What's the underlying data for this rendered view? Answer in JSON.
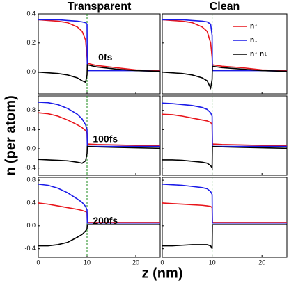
{
  "axis_labels": {
    "x": "z (nm)",
    "y": "n (per atom)"
  },
  "chart_data": [
    {
      "type": "line",
      "title": "Transparent",
      "annotation": "0fs",
      "x": [
        0,
        2,
        4,
        6,
        8,
        9,
        9.7,
        10,
        10.05,
        12,
        16,
        20,
        25
      ],
      "xlim": [
        0,
        25
      ],
      "xticks": [
        0,
        10,
        20
      ],
      "ylim": [
        -0.15,
        0.4
      ],
      "yticks": [
        {
          "value": 0,
          "label": "0.0"
        },
        0.2,
        0.4
      ],
      "vline": 10,
      "series": [
        {
          "name": "n↑",
          "color": "#e8141a",
          "values": [
            0.36,
            0.355,
            0.35,
            0.34,
            0.31,
            0.28,
            0.22,
            0.1,
            0.06,
            0.045,
            0.03,
            0.015,
            0.01
          ]
        },
        {
          "name": "n↓",
          "color": "#1a1ae8",
          "values": [
            0.36,
            0.36,
            0.36,
            0.355,
            0.35,
            0.345,
            0.34,
            0.33,
            0.01,
            0.01,
            0.01,
            0.01,
            0.005
          ]
        },
        {
          "name": "n↑ n↓",
          "color": "#000000",
          "values": [
            0,
            -0.005,
            -0.01,
            -0.02,
            -0.04,
            -0.06,
            -0.07,
            -0.02,
            0.05,
            0.035,
            0.02,
            0.01,
            0.005
          ]
        }
      ]
    },
    {
      "type": "line",
      "title": "Clean",
      "legend": "upper right",
      "x": [
        0,
        2,
        4,
        6,
        8,
        9,
        9.7,
        10,
        10.05,
        12,
        16,
        20,
        25
      ],
      "xlim": [
        0,
        25
      ],
      "xticks": [
        0,
        10,
        20
      ],
      "ylim": [
        -0.15,
        0.4
      ],
      "yticks": [
        {
          "value": 0,
          "label": "0.0"
        },
        0.2,
        0.4
      ],
      "vline": 10,
      "series": [
        {
          "name": "n↑",
          "color": "#e8141a",
          "values": [
            0.36,
            0.355,
            0.35,
            0.34,
            0.31,
            0.28,
            0.2,
            0.1,
            0.05,
            0.04,
            0.03,
            0.015,
            0.01
          ]
        },
        {
          "name": "n↓",
          "color": "#1a1ae8",
          "values": [
            0.36,
            0.36,
            0.36,
            0.355,
            0.35,
            0.345,
            0.33,
            0.25,
            0.01,
            0.01,
            0.01,
            0.01,
            0.005
          ]
        },
        {
          "name": "n↑ n↓",
          "color": "#000000",
          "values": [
            0,
            -0.005,
            -0.01,
            -0.02,
            -0.04,
            -0.06,
            -0.11,
            -0.05,
            0.04,
            0.03,
            0.02,
            0.01,
            0.005
          ]
        }
      ]
    },
    {
      "type": "line",
      "annotation": "100fs",
      "x": [
        0,
        2,
        4,
        6,
        8,
        9,
        9.7,
        10,
        10.05,
        12,
        16,
        20,
        25
      ],
      "xlim": [
        0,
        25
      ],
      "xticks": [
        0,
        10,
        20
      ],
      "ylim": [
        -0.55,
        1.1
      ],
      "yticks": [
        -0.4,
        {
          "value": 0,
          "label": "0.0"
        },
        0.4,
        0.8
      ],
      "vline": 10,
      "series": [
        {
          "name": "n↑",
          "color": "#e8141a",
          "values": [
            0.75,
            0.73,
            0.68,
            0.6,
            0.5,
            0.44,
            0.38,
            0.33,
            0.1,
            0.09,
            0.08,
            0.07,
            0.06
          ]
        },
        {
          "name": "n↓",
          "color": "#1a1ae8",
          "values": [
            0.97,
            0.96,
            0.92,
            0.84,
            0.72,
            0.62,
            0.5,
            0.4,
            0.05,
            0.05,
            0.05,
            0.05,
            0.05
          ]
        },
        {
          "name": "n↑ n↓",
          "color": "#000000",
          "values": [
            -0.22,
            -0.23,
            -0.24,
            -0.25,
            -0.28,
            -0.3,
            -0.25,
            -0.1,
            0.05,
            0.04,
            0.03,
            0.02,
            0.01
          ]
        }
      ]
    },
    {
      "type": "line",
      "x": [
        0,
        2,
        4,
        6,
        8,
        9,
        9.7,
        10,
        10.05,
        12,
        16,
        20,
        25
      ],
      "xlim": [
        0,
        25
      ],
      "xticks": [
        0,
        10,
        20
      ],
      "ylim": [
        -0.55,
        1.1
      ],
      "yticks": [
        -0.4,
        {
          "value": 0,
          "label": "0.0"
        },
        0.4,
        0.8
      ],
      "vline": 10,
      "series": [
        {
          "name": "n↑",
          "color": "#e8141a",
          "values": [
            0.72,
            0.71,
            0.68,
            0.64,
            0.6,
            0.58,
            0.55,
            0.5,
            0.1,
            0.09,
            0.08,
            0.07,
            0.06
          ]
        },
        {
          "name": "n↓",
          "color": "#1a1ae8",
          "values": [
            0.95,
            0.94,
            0.92,
            0.9,
            0.86,
            0.82,
            0.75,
            0.68,
            0.05,
            0.05,
            0.05,
            0.05,
            0.05
          ]
        },
        {
          "name": "n↑ n↓",
          "color": "#000000",
          "values": [
            -0.23,
            -0.23,
            -0.24,
            -0.26,
            -0.28,
            -0.3,
            -0.35,
            -0.4,
            0.05,
            0.04,
            0.03,
            0.02,
            0.01
          ]
        }
      ]
    },
    {
      "type": "line",
      "annotation": "200fs",
      "x": [
        0,
        2,
        4,
        6,
        8,
        9,
        9.7,
        10,
        10.05,
        12,
        16,
        20,
        25
      ],
      "xlim": [
        0,
        25
      ],
      "xticks": [
        0,
        10,
        20
      ],
      "ylim": [
        -0.55,
        0.85
      ],
      "yticks": [
        -0.4,
        {
          "value": 0,
          "label": "0.0"
        },
        0.4,
        0.8
      ],
      "vline": 10,
      "series": [
        {
          "name": "n↑",
          "color": "#e8141a",
          "values": [
            0.4,
            0.38,
            0.35,
            0.32,
            0.29,
            0.27,
            0.25,
            0.23,
            0.06,
            0.06,
            0.06,
            0.06,
            0.06
          ]
        },
        {
          "name": "n↓",
          "color": "#1a1ae8",
          "values": [
            0.73,
            0.71,
            0.66,
            0.58,
            0.47,
            0.41,
            0.34,
            0.28,
            0.05,
            0.05,
            0.05,
            0.05,
            0.05
          ]
        },
        {
          "name": "n↑ n↓",
          "color": "#000000",
          "values": [
            -0.35,
            -0.35,
            -0.33,
            -0.29,
            -0.2,
            -0.15,
            -0.09,
            -0.05,
            0.02,
            0.02,
            0.02,
            0.02,
            0.02
          ]
        }
      ]
    },
    {
      "type": "line",
      "x": [
        0,
        2,
        4,
        6,
        8,
        9,
        9.7,
        10,
        10.05,
        12,
        16,
        20,
        25
      ],
      "xlim": [
        0,
        25
      ],
      "xticks": [
        0,
        10,
        20
      ],
      "ylim": [
        -0.55,
        0.85
      ],
      "yticks": [
        -0.4,
        {
          "value": 0,
          "label": "0.0"
        },
        0.4,
        0.8
      ],
      "vline": 10,
      "series": [
        {
          "name": "n↑",
          "color": "#e8141a",
          "values": [
            0.4,
            0.39,
            0.38,
            0.37,
            0.36,
            0.35,
            0.34,
            0.32,
            0.06,
            0.06,
            0.06,
            0.06,
            0.06
          ]
        },
        {
          "name": "n↓",
          "color": "#1a1ae8",
          "values": [
            0.73,
            0.72,
            0.71,
            0.69,
            0.67,
            0.65,
            0.6,
            0.55,
            0.05,
            0.05,
            0.05,
            0.05,
            0.05
          ]
        },
        {
          "name": "n↑ n↓",
          "color": "#000000",
          "values": [
            -0.35,
            -0.35,
            -0.34,
            -0.33,
            -0.33,
            -0.33,
            -0.35,
            -0.4,
            0.02,
            0.02,
            0.02,
            0.02,
            0.02
          ]
        }
      ]
    }
  ]
}
